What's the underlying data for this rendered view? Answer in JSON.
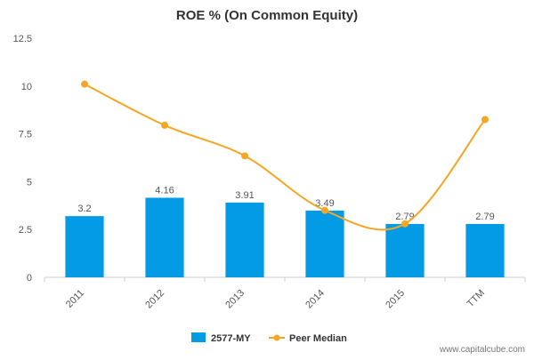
{
  "chart_data": {
    "type": "bar",
    "title": "ROE % (On Common Equity)",
    "categories": [
      "2011",
      "2012",
      "2013",
      "2014",
      "2015",
      "TTM"
    ],
    "series": [
      {
        "name": "2577-MY",
        "type": "bar",
        "values": [
          3.2,
          4.16,
          3.91,
          3.49,
          2.79,
          2.79
        ],
        "data_labels": [
          "3.2",
          "4.16",
          "3.91",
          "3.49",
          "2.79",
          "2.79"
        ],
        "color": "#039be5"
      },
      {
        "name": "Peer Median",
        "type": "line",
        "smooth": true,
        "values": [
          10.1,
          7.95,
          6.35,
          3.5,
          2.8,
          8.25
        ],
        "color": "#f5a623"
      }
    ],
    "yticks": [
      "0",
      "2.5",
      "5",
      "7.5",
      "10",
      "12.5"
    ],
    "ylim": [
      0,
      12.5
    ],
    "xlabel": "",
    "ylabel": "",
    "grid": false,
    "legend_position": "bottom-center"
  },
  "legend": {
    "bar_label": "2577-MY",
    "line_label": "Peer Median"
  },
  "watermark": "www.capitalcube.com"
}
